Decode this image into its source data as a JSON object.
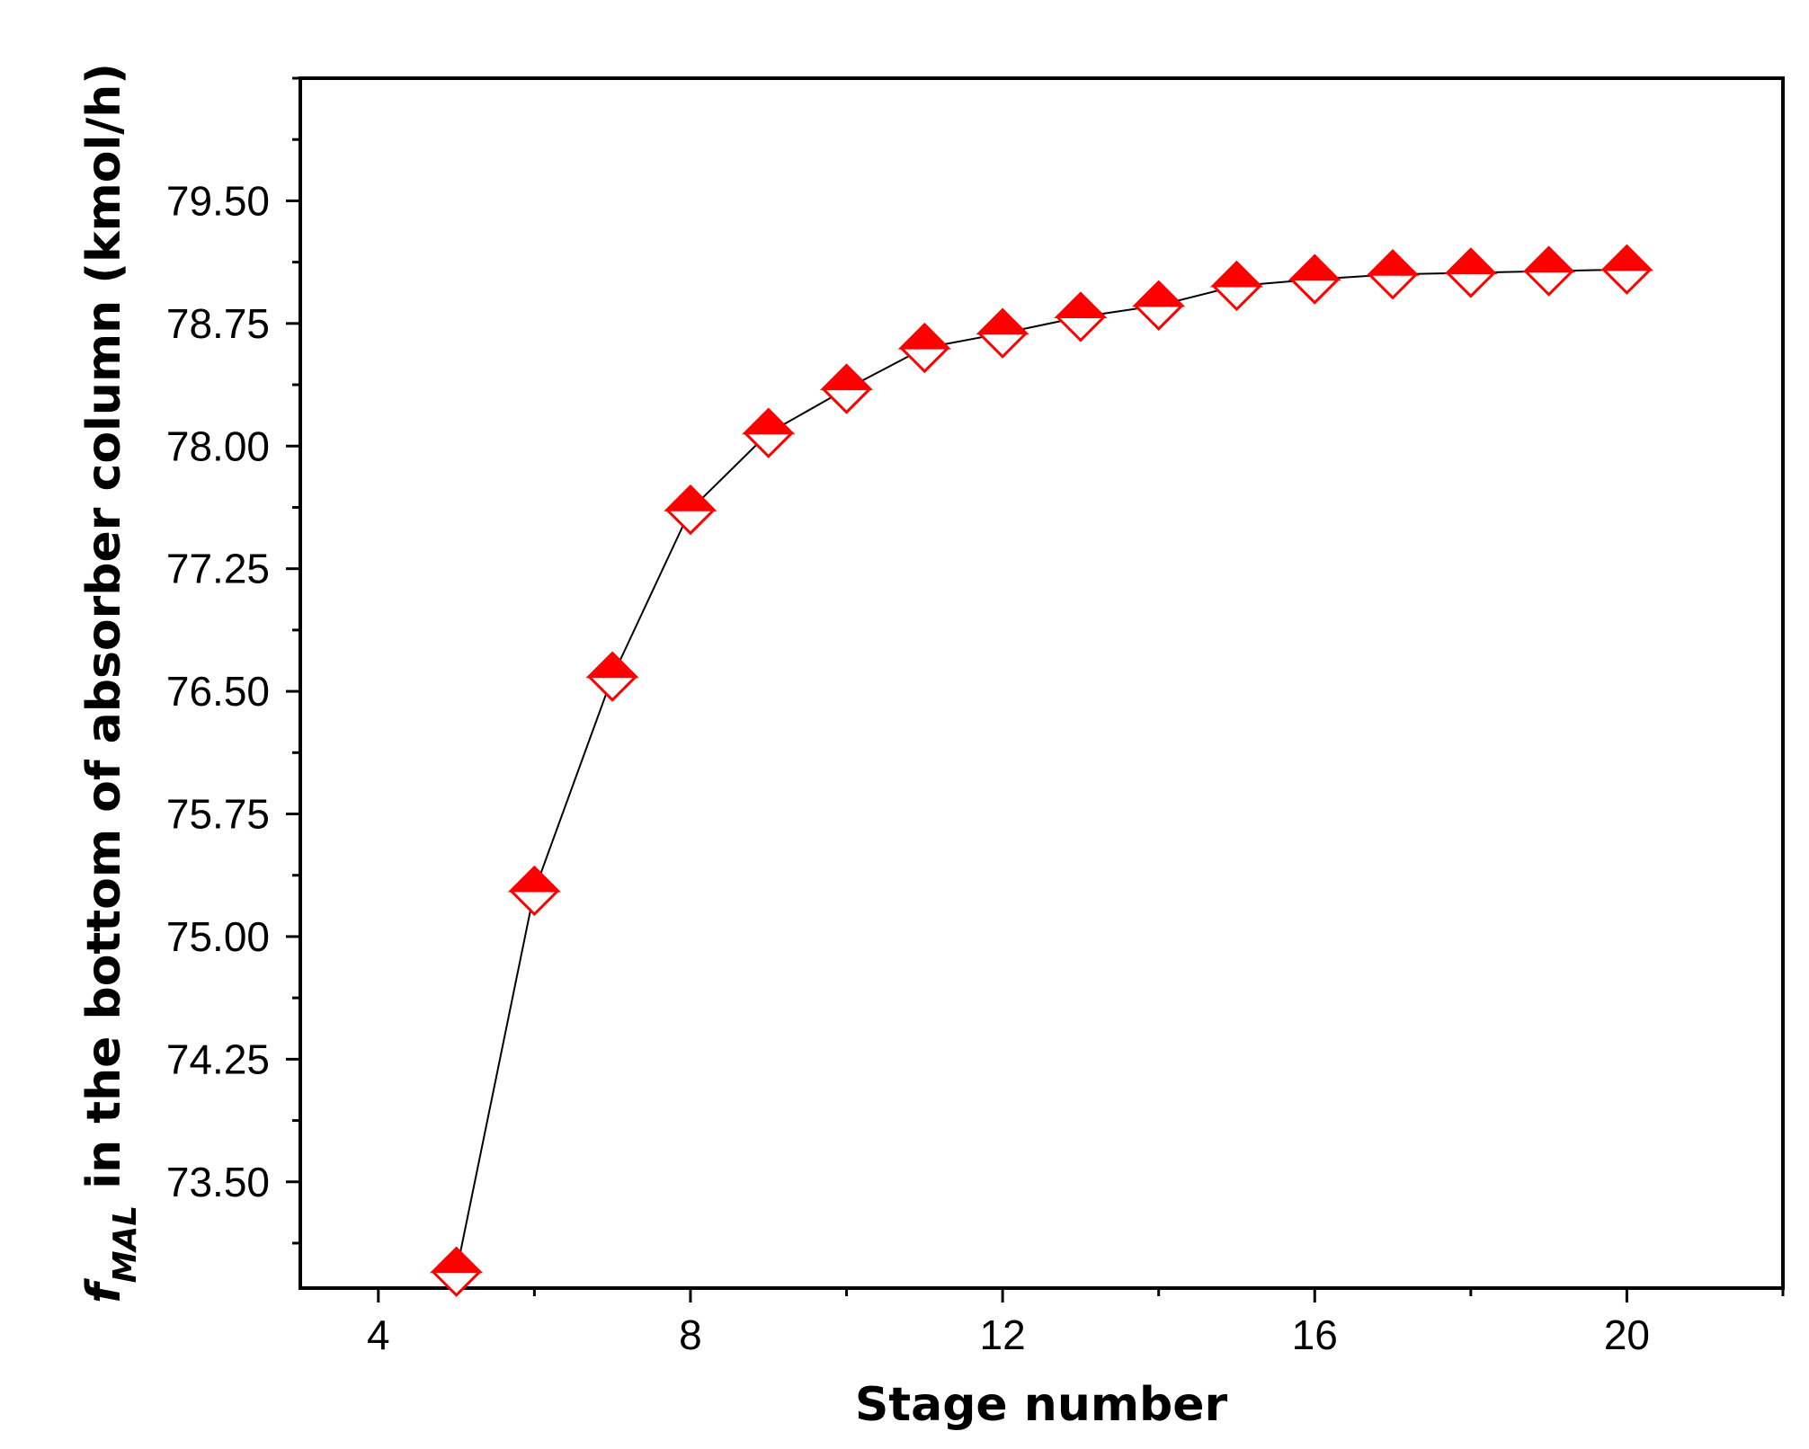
{
  "chart_data": {
    "type": "scatter",
    "xlabel": "Stage number",
    "ylabel": {
      "symbol": "f",
      "subscript": "MAL",
      "text": " in the bottom of absorber column (kmol/h)"
    },
    "xlim": [
      3,
      22
    ],
    "ylim": [
      72.85,
      80.25
    ],
    "x_ticks": [
      "4",
      "8",
      "12",
      "16",
      "20"
    ],
    "y_ticks": [
      "73.50",
      "74.25",
      "75.00",
      "75.75",
      "76.50",
      "77.25",
      "78.00",
      "78.75",
      "79.50"
    ],
    "grid": false,
    "legend": "none",
    "marker": "diamond, top half filled",
    "marker_color": "#ff0000",
    "line_color": "#000000",
    "series": [
      {
        "x": [
          5,
          6,
          7,
          8,
          9,
          10,
          11,
          12,
          13,
          14,
          15,
          16,
          17,
          18,
          19,
          20
        ],
        "y": [
          72.95,
          75.28,
          76.59,
          77.61,
          78.08,
          78.35,
          78.6,
          78.69,
          78.79,
          78.86,
          78.98,
          79.02,
          79.05,
          79.06,
          79.07,
          79.08
        ]
      }
    ]
  }
}
